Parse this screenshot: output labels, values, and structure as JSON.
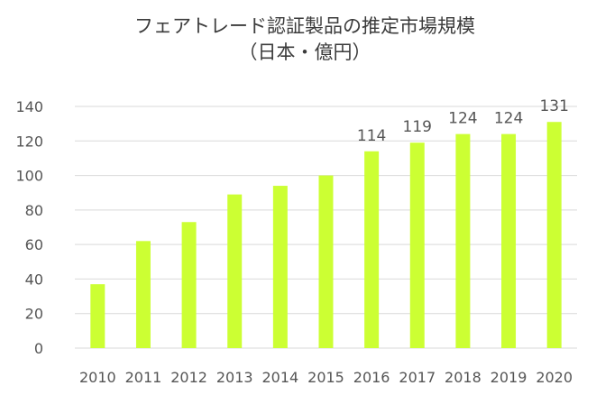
{
  "chart_data": {
    "type": "bar",
    "title": "フェアトレード認証製品の推定市場規模",
    "subtitle": "（日本・億円）",
    "xlabel": "",
    "ylabel": "",
    "categories": [
      "2010",
      "2011",
      "2012",
      "2013",
      "2014",
      "2015",
      "2016",
      "2017",
      "2018",
      "2019",
      "2020"
    ],
    "values": [
      37,
      62,
      73,
      89,
      94,
      100,
      114,
      119,
      124,
      124,
      131
    ],
    "data_labels": [
      null,
      null,
      null,
      null,
      null,
      null,
      "114",
      "119",
      "124",
      "124",
      "131"
    ],
    "ylim": [
      0,
      140
    ],
    "yticks": [
      0,
      20,
      40,
      60,
      80,
      100,
      120,
      140
    ],
    "grid": true,
    "legend": "none",
    "bar_color": "#ccff33"
  }
}
